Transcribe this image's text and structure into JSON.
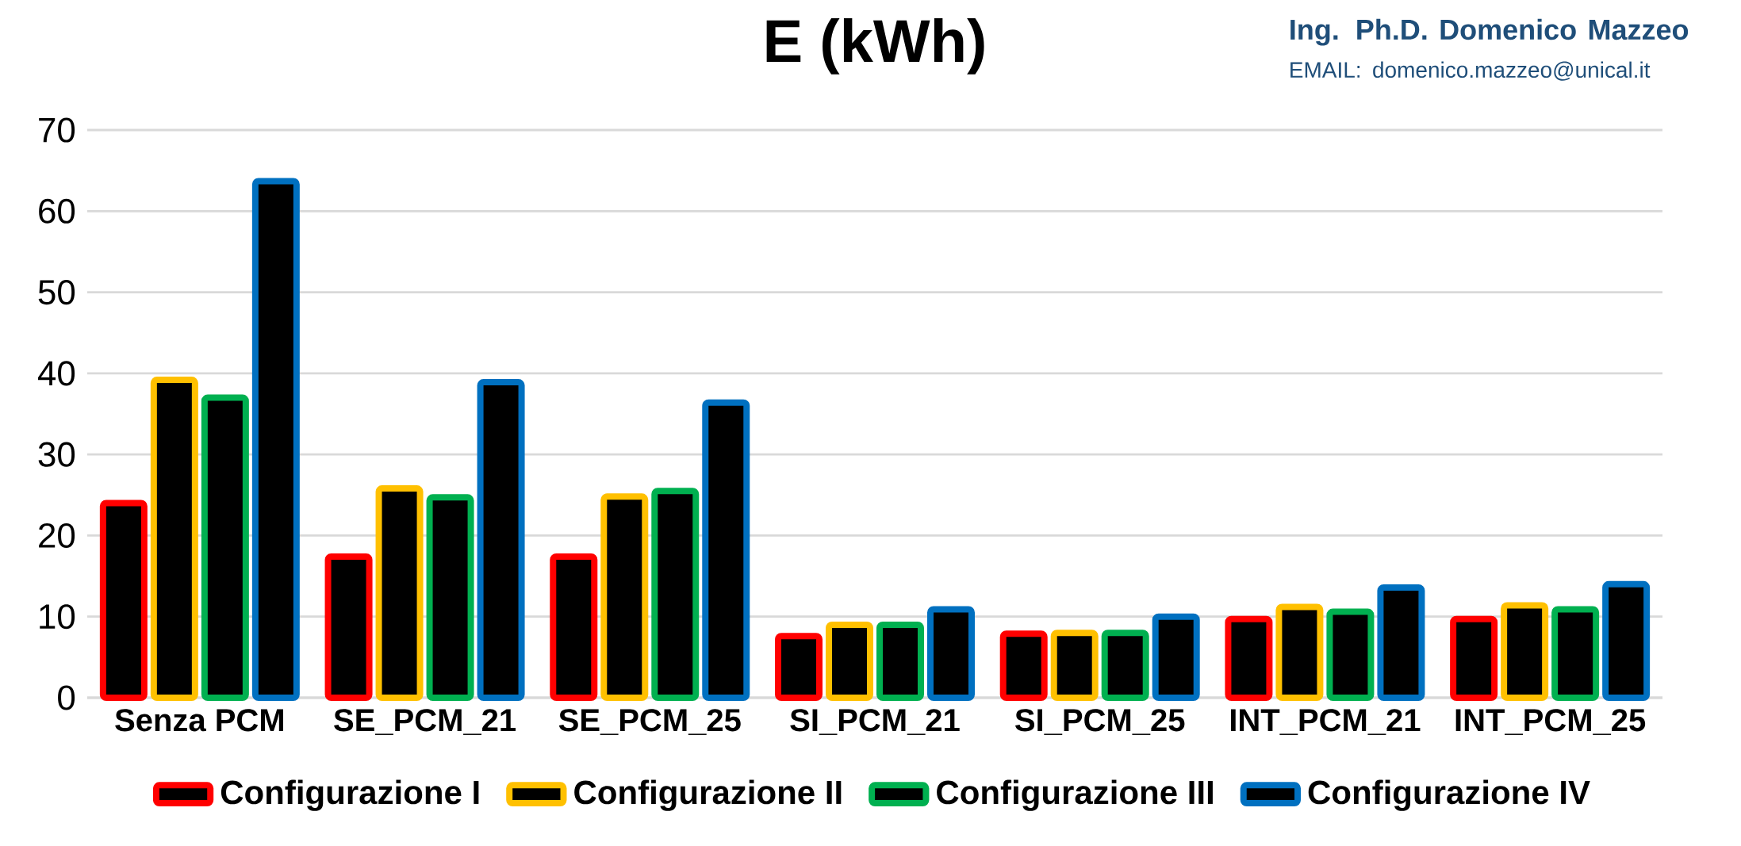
{
  "chart_data": {
    "type": "bar",
    "title": "E (kWh)",
    "annotations": [
      "Ing. Ph.D. Domenico Mazzeo",
      "EMAIL: domenico.mazzeo@unical.it"
    ],
    "categories": [
      "Senza PCM",
      "SE_PCM_21",
      "SE_PCM_25",
      "SI_PCM_21",
      "SI_PCM_25",
      "INT_PCM_21",
      "INT_PCM_25"
    ],
    "series": [
      {
        "name": "Configurazione I",
        "color": "#ff0000",
        "values": [
          24.0,
          17.4,
          17.4,
          7.6,
          7.9,
          9.7,
          9.7
        ]
      },
      {
        "name": "Configurazione II",
        "color": "#ffc000",
        "values": [
          39.2,
          25.8,
          24.8,
          9.0,
          8.0,
          11.2,
          11.4
        ]
      },
      {
        "name": "Configurazione III",
        "color": "#00b050",
        "values": [
          37.0,
          24.7,
          25.5,
          9.0,
          8.0,
          10.6,
          10.9
        ]
      },
      {
        "name": "Configurazione IV",
        "color": "#0070c0",
        "values": [
          63.7,
          38.9,
          36.4,
          10.9,
          10.0,
          13.6,
          14.0
        ]
      }
    ],
    "ylim": [
      0,
      70
    ],
    "yticks": [
      0,
      10,
      20,
      30,
      40,
      50,
      60,
      70
    ],
    "grid": "y",
    "legend": "bottom"
  }
}
